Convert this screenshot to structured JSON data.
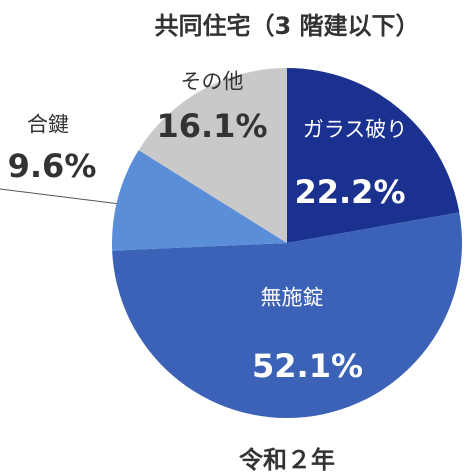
{
  "chart_data": {
    "type": "pie",
    "title": "共同住宅（3 階建以下）",
    "subtitle": "令和２年",
    "categories": [
      "ガラス破り",
      "無施錠",
      "合鍵",
      "その他"
    ],
    "values": [
      22.2,
      52.1,
      9.6,
      16.1
    ],
    "value_labels": [
      "22.2%",
      "52.1%",
      "9.6%",
      "16.1%"
    ],
    "colors": [
      "#1b318f",
      "#3b62b6",
      "#5a8ed8",
      "#c9c9c9"
    ]
  }
}
